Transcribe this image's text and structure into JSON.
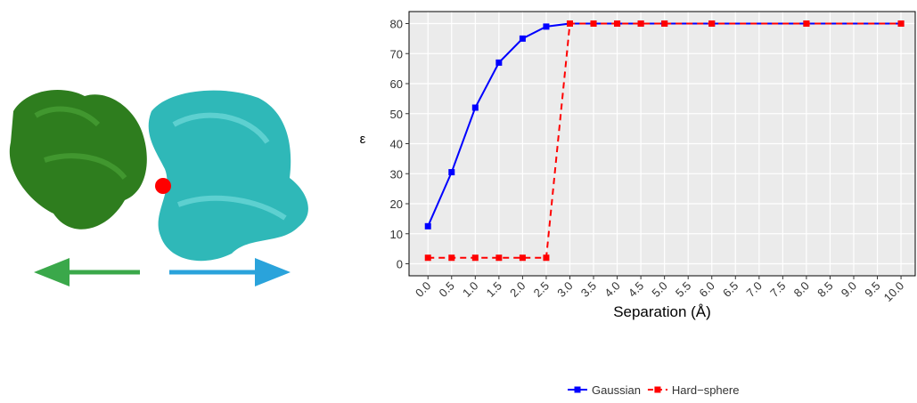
{
  "chart_data": {
    "type": "line",
    "x_label": "Separation (Å)",
    "y_label": "ε",
    "x": [
      0,
      0.5,
      1,
      1.5,
      2,
      2.5,
      3,
      3.5,
      4,
      4.5,
      5,
      6,
      8,
      10
    ],
    "series": [
      {
        "name": "Gaussian",
        "color": "#0000ff",
        "linestyle": "solid",
        "values": [
          12.5,
          30.5,
          52,
          67,
          75,
          79,
          80,
          80,
          80,
          80,
          80,
          80,
          80,
          80
        ]
      },
      {
        "name": "Hard−sphere",
        "color": "#ff0000",
        "linestyle": "dashed",
        "values": [
          2,
          2,
          2,
          2,
          2,
          2,
          80,
          80,
          80,
          80,
          80,
          80,
          80,
          80
        ]
      }
    ],
    "xlim": [
      -0.4,
      10.3
    ],
    "ylim": [
      -4,
      84
    ],
    "xticks": [
      {
        "value": 0,
        "label": "0.0"
      },
      {
        "value": 0.5,
        "label": "0.5"
      },
      {
        "value": 1,
        "label": "1.0"
      },
      {
        "value": 1.5,
        "label": "1.5"
      },
      {
        "value": 2,
        "label": "2.0"
      },
      {
        "value": 2.5,
        "label": "2.5"
      },
      {
        "value": 3,
        "label": "3.0"
      },
      {
        "value": 3.5,
        "label": "3.5"
      },
      {
        "value": 4,
        "label": "4.0"
      },
      {
        "value": 4.5,
        "label": "4.5"
      },
      {
        "value": 5,
        "label": "5.0"
      },
      {
        "value": 5.5,
        "label": "5.5"
      },
      {
        "value": 6,
        "label": "6.0"
      },
      {
        "value": 6.5,
        "label": "6.5"
      },
      {
        "value": 7,
        "label": "7.0"
      },
      {
        "value": 7.5,
        "label": "7.5"
      },
      {
        "value": 8,
        "label": "8.0"
      },
      {
        "value": 8.5,
        "label": "8.5"
      },
      {
        "value": 9,
        "label": "9.0"
      },
      {
        "value": 9.5,
        "label": "9.5"
      },
      {
        "value": 10,
        "label": "10.0"
      }
    ],
    "yticks": [
      0,
      10,
      20,
      30,
      40,
      50,
      60,
      70,
      80
    ],
    "grid": true,
    "legend": "bottom"
  }
}
